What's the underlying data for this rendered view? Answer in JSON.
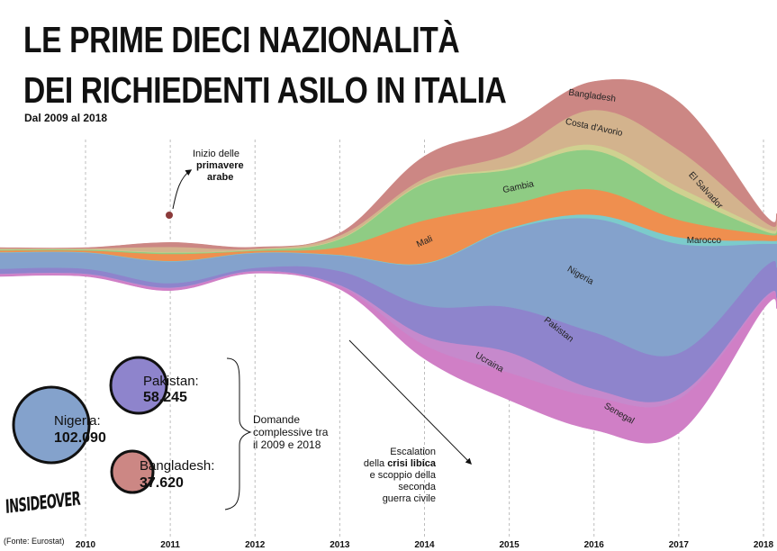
{
  "header": {
    "title_line1": "LE PRIME DIECI NAZIONALITÀ",
    "title_line2": "DEI RICHIEDENTI ASILO IN ITALIA",
    "subtitle": "Dal 2009 al 2018"
  },
  "branding": {
    "logo_text": "INSIDEOVER",
    "source": "(Fonte: Eurostat)"
  },
  "annotations": {
    "arab_spring": [
      "Inizio delle",
      "primavere",
      "arabe"
    ],
    "libya": [
      "Escalation",
      "della crisi libica",
      "e scoppio della",
      "seconda",
      "guerra civile"
    ],
    "libya_bold": "crisi libica",
    "totals_label": [
      "Domande",
      "complessive tra",
      "il 2009 e 2018"
    ]
  },
  "bubbles": [
    {
      "country": "Nigeria:",
      "value": "102.090",
      "color": "#84a2cc"
    },
    {
      "country": "Pakistan:",
      "value": "58.245",
      "color": "#8e84cc"
    },
    {
      "country": "Bangladesh:",
      "value": "37.620",
      "color": "#cc8784"
    }
  ],
  "chart_data": {
    "type": "streamgraph",
    "title": "Le prime dieci nazionalità dei richiedenti asilo in Italia",
    "subtitle": "Dal 2009 al 2018",
    "x": [
      "2010",
      "2011",
      "2012",
      "2013",
      "2014",
      "2015",
      "2016",
      "2017",
      "2018"
    ],
    "y_unit": "richiedenti asilo (stima)",
    "series": [
      {
        "name": "Senegal",
        "color": "#d07fc6",
        "values": [
          450,
          500,
          400,
          700,
          3200,
          6300,
          7600,
          7800,
          2000
        ]
      },
      {
        "name": "Ucraina",
        "color": "#c689cc",
        "values": [
          200,
          200,
          150,
          250,
          2100,
          4700,
          1800,
          1000,
          400
        ]
      },
      {
        "name": "Pakistan",
        "color": "#8e84cc",
        "values": [
          1100,
          1000,
          700,
          3200,
          7000,
          10300,
          13000,
          9500,
          7000
        ]
      },
      {
        "name": "Nigeria",
        "color": "#84a2cc",
        "values": [
          3700,
          5000,
          3400,
          3600,
          9500,
          17800,
          26000,
          25000,
          5500
        ]
      },
      {
        "name": "Marocco",
        "color": "#7ccbcb",
        "values": [
          100,
          100,
          100,
          120,
          150,
          300,
          900,
          1500,
          700
        ]
      },
      {
        "name": "Mali",
        "color": "#ef8f4f",
        "values": [
          400,
          1600,
          400,
          1800,
          9800,
          5400,
          5800,
          4000,
          1500
        ]
      },
      {
        "name": "Gambia",
        "color": "#8fcc84",
        "values": [
          200,
          300,
          200,
          1800,
          8500,
          8000,
          8900,
          6000,
          800
        ]
      },
      {
        "name": "El Salvador",
        "color": "#cfd190",
        "values": [
          120,
          120,
          100,
          150,
          250,
          500,
          1300,
          1500,
          700
        ]
      },
      {
        "name": "Costa d'Avorio",
        "color": "#d3b38d",
        "values": [
          150,
          1200,
          200,
          700,
          900,
          3100,
          8000,
          8500,
          1500
        ]
      },
      {
        "name": "Bangladesh",
        "color": "#cc8784",
        "values": [
          150,
          1000,
          300,
          500,
          5000,
          6000,
          6500,
          11000,
          1700
        ]
      }
    ],
    "labels_shown": [
      "Bangladesh",
      "Costa d'Avorio",
      "El Salvador",
      "Gambia",
      "Mali",
      "Marocco",
      "Nigeria",
      "Pakistan",
      "Ucraina",
      "Senegal"
    ],
    "grid": "vertical dashed lines at each year"
  }
}
